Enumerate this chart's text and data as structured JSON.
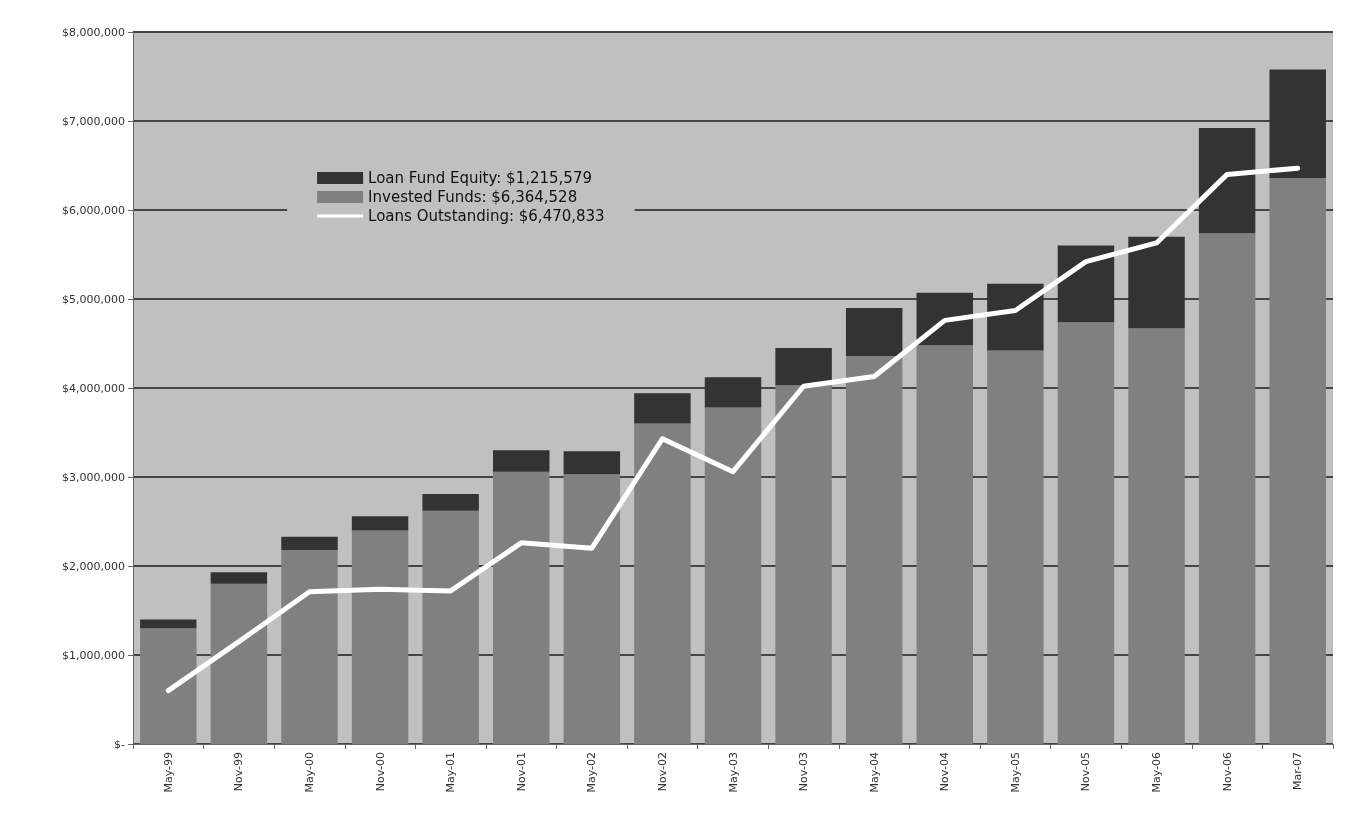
{
  "chart_data": {
    "type": "bar",
    "stacked": true,
    "categories": [
      "May-99",
      "Nov-99",
      "May-00",
      "Nov-00",
      "May-01",
      "Nov-01",
      "May-02",
      "Nov-02",
      "May-03",
      "Nov-03",
      "May-04",
      "Nov-04",
      "May-05",
      "Nov-05",
      "May-06",
      "Nov-06",
      "Mar-07"
    ],
    "series": [
      {
        "name": "Invested Funds: $6,364,528",
        "color": "#808080",
        "values": [
          1300000,
          1800000,
          2180000,
          2400000,
          2620000,
          3060000,
          3030000,
          3600000,
          3780000,
          4030000,
          4360000,
          4480000,
          4420000,
          4740000,
          4670000,
          5740000,
          6360000
        ]
      },
      {
        "name": "Loan Fund Equity: $1,215,579",
        "color": "#333333",
        "values": [
          100000,
          130000,
          150000,
          160000,
          190000,
          240000,
          260000,
          340000,
          340000,
          420000,
          540000,
          590000,
          750000,
          860000,
          1030000,
          1180000,
          1220000
        ]
      },
      {
        "name": "Loans Outstanding: $6,470,833",
        "type": "line",
        "color": "#ffffff",
        "values": [
          600000,
          1150000,
          1710000,
          1740000,
          1720000,
          2260000,
          2200000,
          3430000,
          3060000,
          4020000,
          4130000,
          4760000,
          4870000,
          5420000,
          5630000,
          6400000,
          6470000
        ]
      }
    ],
    "ylim": [
      0,
      8000000
    ],
    "yticks": [
      {
        "value": 0,
        "label": "$-"
      },
      {
        "value": 1000000,
        "label": "$1,000,000"
      },
      {
        "value": 2000000,
        "label": "$2,000,000"
      },
      {
        "value": 3000000,
        "label": "$3,000,000"
      },
      {
        "value": 4000000,
        "label": "$4,000,000"
      },
      {
        "value": 5000000,
        "label": "$5,000,000"
      },
      {
        "value": 6000000,
        "label": "$6,000,000"
      },
      {
        "value": 7000000,
        "label": "$7,000,000"
      },
      {
        "value": 8000000,
        "label": "$8,000,000"
      }
    ],
    "grid": "y",
    "legend": "top left",
    "marker": "none"
  }
}
